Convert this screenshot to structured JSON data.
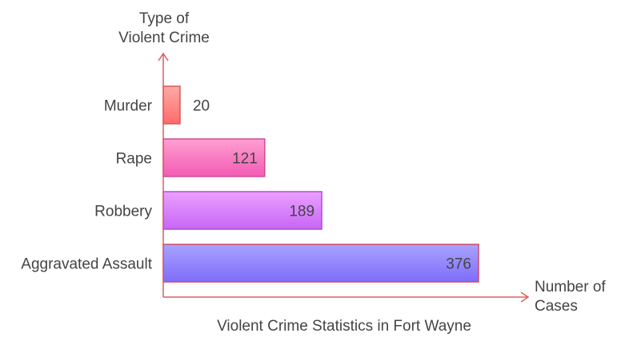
{
  "chart_data": {
    "type": "bar",
    "orientation": "horizontal",
    "title": "Violent Crime Statistics in Fort Wayne",
    "ylabel": [
      "Type of",
      "Violent Crime"
    ],
    "xlabel": [
      "Number of",
      "Cases"
    ],
    "categories": [
      "Murder",
      "Rape",
      "Robbery",
      "Aggravated Assault"
    ],
    "values": [
      20,
      121,
      189,
      376
    ],
    "xlim": [
      0,
      376
    ],
    "grid": false,
    "legend": "none",
    "colors": [
      {
        "top": "#ffaaa6",
        "bottom": "#ff6b6b",
        "stroke": "#d65a5a"
      },
      {
        "top": "#ff9fd2",
        "bottom": "#f25bb4",
        "stroke": "#d04a98"
      },
      {
        "top": "#eba0ff",
        "bottom": "#c766f5",
        "stroke": "#b04cd6"
      },
      {
        "top": "#a8a3ff",
        "bottom": "#7f6cfa",
        "stroke": "#d04a6a"
      }
    ],
    "axis_color": "#d86060"
  }
}
